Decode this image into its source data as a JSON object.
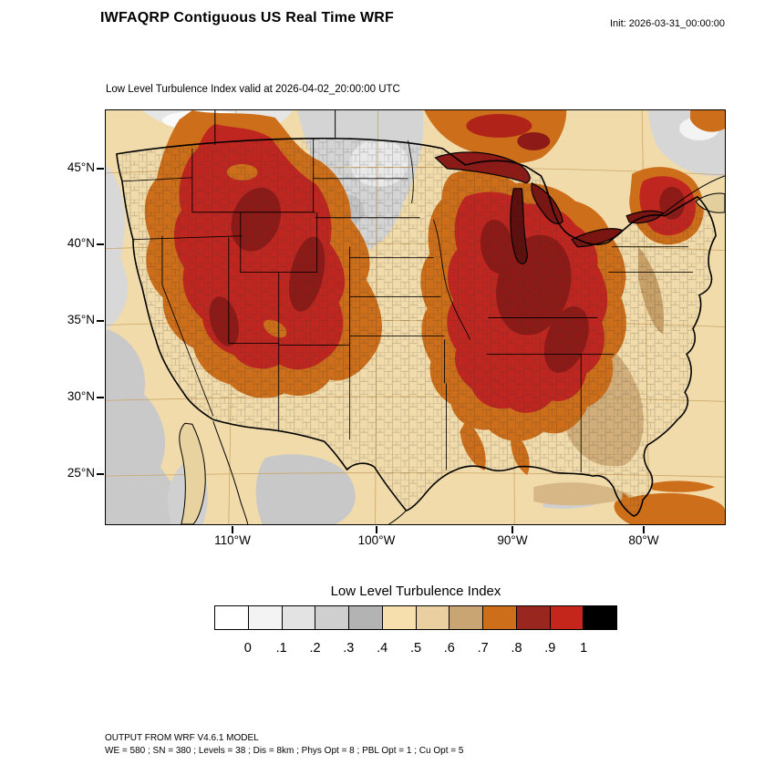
{
  "header": {
    "title": "IWFAQRP Contiguous US Real Time WRF",
    "init_label": "Init: 2026-03-31_00:00:00"
  },
  "map": {
    "subtitle": "Low Level Turbulence Index valid at 2026-04-02_20:00:00 UTC",
    "lat_labels": [
      "45°N",
      "40°N",
      "35°N",
      "30°N",
      "25°N"
    ],
    "lon_labels": [
      "110°W",
      "100°W",
      "90°W",
      "80°W"
    ]
  },
  "colorbar": {
    "title": "Low Level Turbulence Index",
    "tick_labels": [
      "0",
      ".1",
      ".2",
      ".3",
      ".4",
      ".5",
      ".6",
      ".7",
      ".8",
      ".9",
      "1"
    ],
    "colors": [
      "#ffffff",
      "#f3f3f3",
      "#e3e3e3",
      "#cfcfcf",
      "#b3b3b3",
      "#f6dfad",
      "#ead0a0",
      "#c9a573",
      "#cc6e1a",
      "#99261f",
      "#c4261c",
      "#000000"
    ]
  },
  "footer": {
    "line1": "OUTPUT FROM WRF V4.6.1 MODEL",
    "line2": "WE = 580 ; SN = 380 ; Levels = 38 ; Dis = 8km ; Phys Opt = 8 ; PBL Opt = 1 ; Cu Opt = 5"
  }
}
